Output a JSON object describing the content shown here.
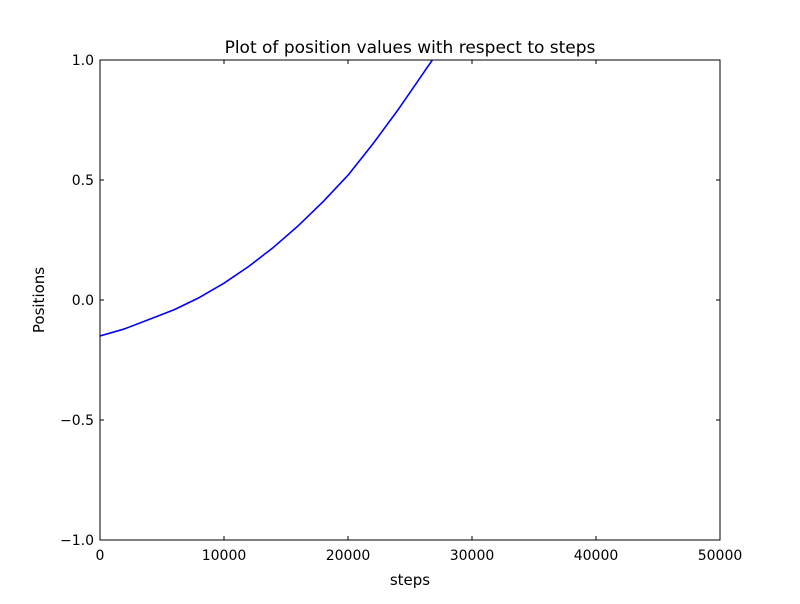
{
  "chart_data": {
    "type": "line",
    "title": "Plot of position values with respect to steps",
    "xlabel": "steps",
    "ylabel": "Positions",
    "xlim": [
      0,
      50000
    ],
    "ylim": [
      -1.0,
      1.0
    ],
    "xticks": [
      0,
      10000,
      20000,
      30000,
      40000,
      50000
    ],
    "xtick_labels": [
      "0",
      "10000",
      "20000",
      "30000",
      "40000",
      "50000"
    ],
    "yticks": [
      -1.0,
      -0.5,
      0.0,
      0.5,
      1.0
    ],
    "ytick_labels": [
      "−1.0",
      "−0.5",
      "0.0",
      "0.5",
      "1.0"
    ],
    "grid": false,
    "legend": false,
    "series": [
      {
        "color": "#0000ff",
        "x": [
          0,
          2000,
          4000,
          6000,
          8000,
          10000,
          12000,
          14000,
          16000,
          18000,
          20000,
          22000,
          24000,
          26000,
          26800
        ],
        "y": [
          -0.15,
          -0.12,
          -0.08,
          -0.04,
          0.01,
          0.07,
          0.14,
          0.22,
          0.31,
          0.41,
          0.52,
          0.65,
          0.79,
          0.94,
          1.0
        ]
      }
    ]
  }
}
